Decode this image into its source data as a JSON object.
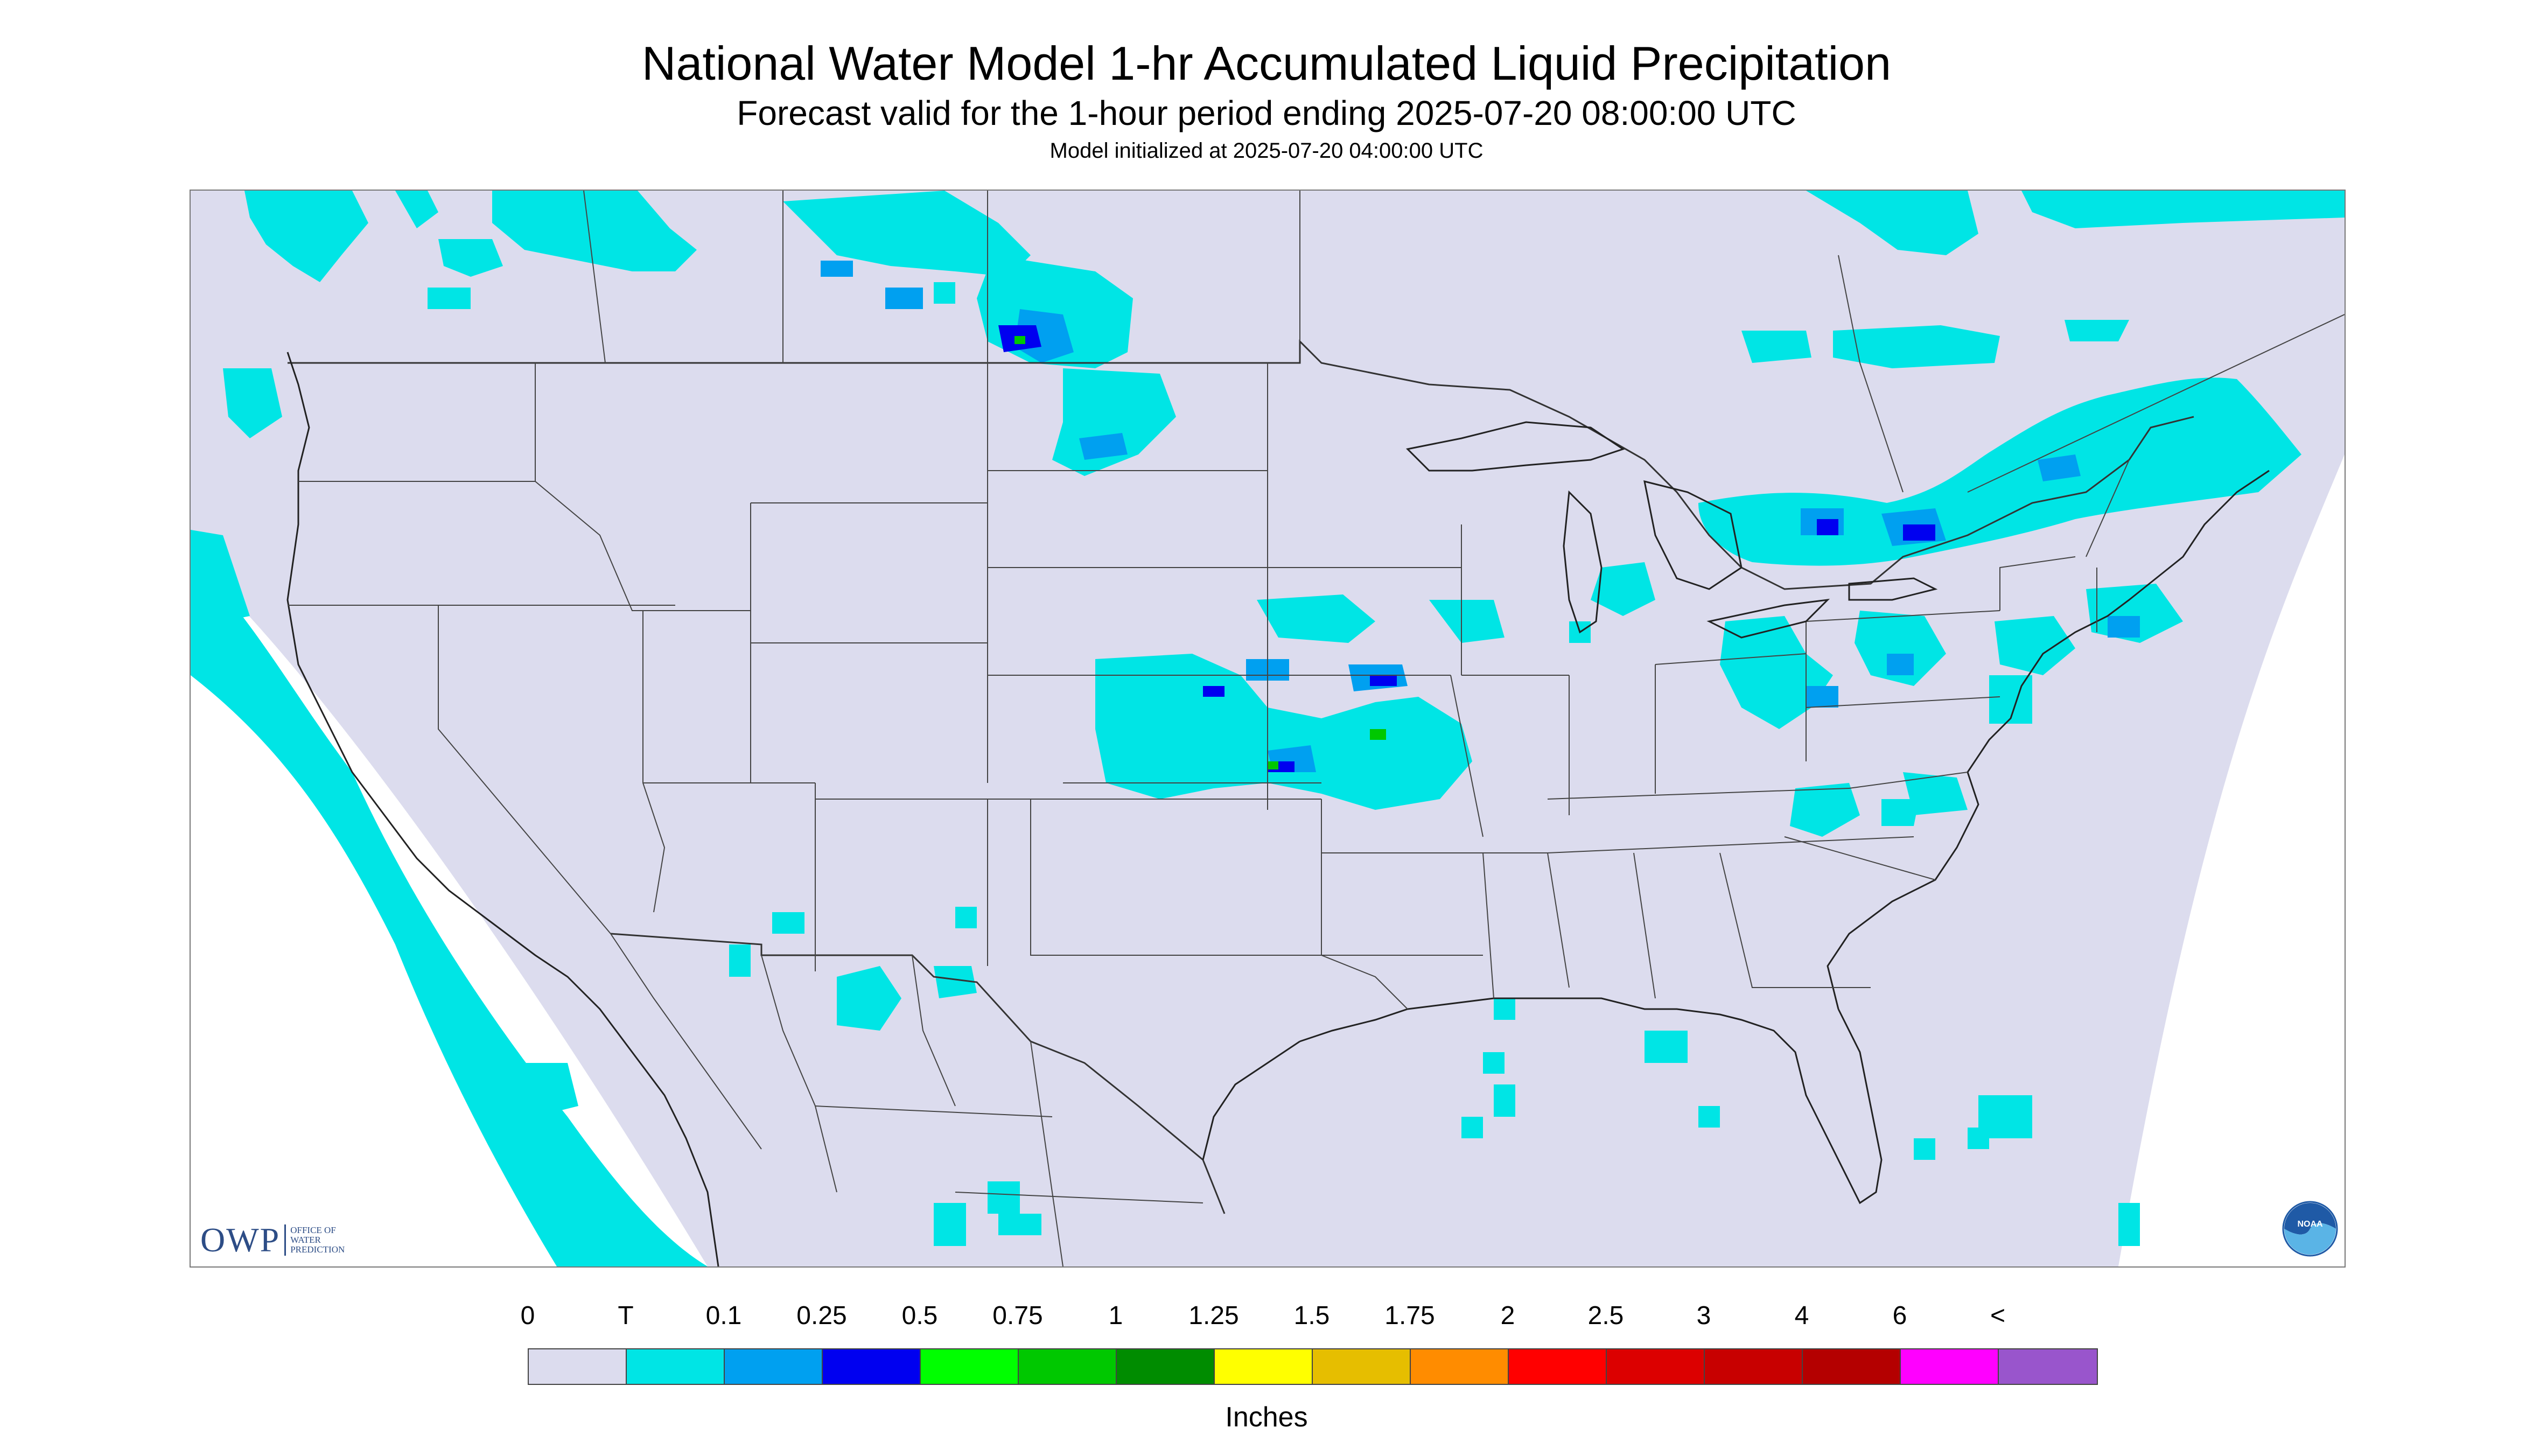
{
  "titles": {
    "main": "National Water Model 1-hr Accumulated Liquid Precipitation",
    "sub": "Forecast valid for the 1-hour period ending 2025-07-20 08:00:00 UTC",
    "init": "Model initialized at 2025-07-20 04:00:00 UTC"
  },
  "map": {
    "background_color": "#dcdcee",
    "outside_color": "#ffffff",
    "boundary_color": "#333333",
    "layers": [
      "state-boundaries",
      "country-boundaries",
      "coastlines",
      "precipitation-shading"
    ]
  },
  "legend": {
    "labels": [
      "0",
      "T",
      "0.1",
      "0.25",
      "0.5",
      "0.75",
      "1",
      "1.25",
      "1.5",
      "1.75",
      "2",
      "2.5",
      "3",
      "4",
      "6",
      "<"
    ],
    "colors": [
      "#dcdcee",
      "#00e5e5",
      "#00a0f0",
      "#0000f0",
      "#00ff00",
      "#00c800",
      "#008c00",
      "#ffff00",
      "#e6be00",
      "#ff8c00",
      "#ff0000",
      "#dc0000",
      "#c80000",
      "#b40000",
      "#ff00ff",
      "#9955cc"
    ],
    "unit": "Inches"
  },
  "logos": {
    "owp": {
      "letters": "OWP",
      "text": "OFFICE OF WATER PREDICTION",
      "color": "#2d4d86"
    },
    "noaa": {
      "text": "NOAA",
      "color": "#1f5aa6"
    }
  }
}
